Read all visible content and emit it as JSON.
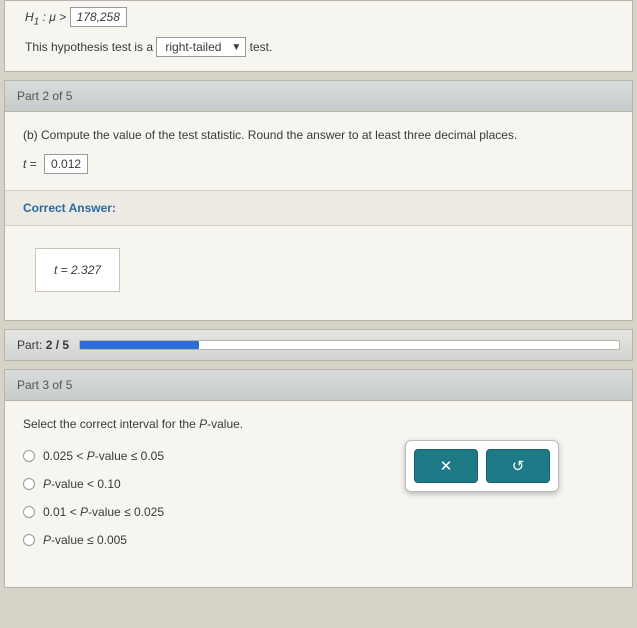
{
  "colors": {
    "page_bg": "#d8d3c9",
    "panel_bg": "#f7f5f0",
    "border": "#b8b4aa",
    "header_grad_top": "#d9dcdc",
    "header_grad_bot": "#c7cbcb",
    "correct_color": "#2a6aa0",
    "progress_fill": "#2a6ed6",
    "button_bg": "#1f7a87"
  },
  "top": {
    "h1_prefix": "H",
    "h1_sub": "1",
    "h1_rel": ": μ >",
    "h1_value": "178,258",
    "sentence_pre": "This hypothesis test is a ",
    "select_value": "right-tailed",
    "sentence_post": " test."
  },
  "part2": {
    "header": "Part 2 of 5",
    "prompt": "(b) Compute the value of the test statistic. Round the answer to at least three decimal places.",
    "t_label": "t =",
    "t_value": "0.012",
    "correct_header": "Correct Answer:",
    "correct_value": "t = 2.327"
  },
  "progress": {
    "label_pre": "Part: ",
    "label_val": "2 / 5",
    "percent": 22
  },
  "part3": {
    "header": "Part 3 of 5",
    "prompt_pre": "Select the correct interval for the ",
    "prompt_p": "P",
    "prompt_post": "-value.",
    "options": [
      "0.025 < P-value ≤ 0.05",
      "P-value < 0.10",
      "0.01 < P-value ≤ 0.025",
      "P-value ≤ 0.005"
    ],
    "btn_x": "✕",
    "btn_reset": "↺"
  }
}
